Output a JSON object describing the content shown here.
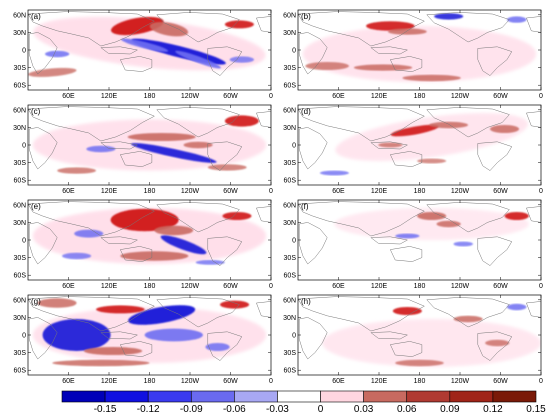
{
  "figure": {
    "panel_labels": [
      "(a)",
      "(b)",
      "(c)",
      "(d)",
      "(e)",
      "(f)",
      "(g)",
      "(h)"
    ],
    "lat_ticks": [
      "60N",
      "30N",
      "0",
      "30S",
      "60S"
    ],
    "lon_ticks": [
      "60E",
      "120E",
      "180",
      "120W",
      "60W",
      "0"
    ]
  },
  "colorbar": {
    "labels": [
      "-0.15",
      "-0.12",
      "-0.09",
      "-0.06",
      "-0.03",
      "0",
      "0.03",
      "0.06",
      "0.09",
      "0.12",
      "0.15"
    ],
    "colors": [
      "#0000b8",
      "#1010e0",
      "#3a3af0",
      "#6a6af0",
      "#a8a8f4",
      "#ffffff",
      "#ffd6e0",
      "#c86a60",
      "#b03a32",
      "#a02418",
      "#7a1a08"
    ]
  },
  "colors": {
    "strong_negative": "#1515d8",
    "weak_negative": "#6e6ef2",
    "weak_positive": "#c96a62",
    "strong_positive": "#d01818",
    "very_weak_positive": "#ffd8e6",
    "coastline": "#777777"
  }
}
